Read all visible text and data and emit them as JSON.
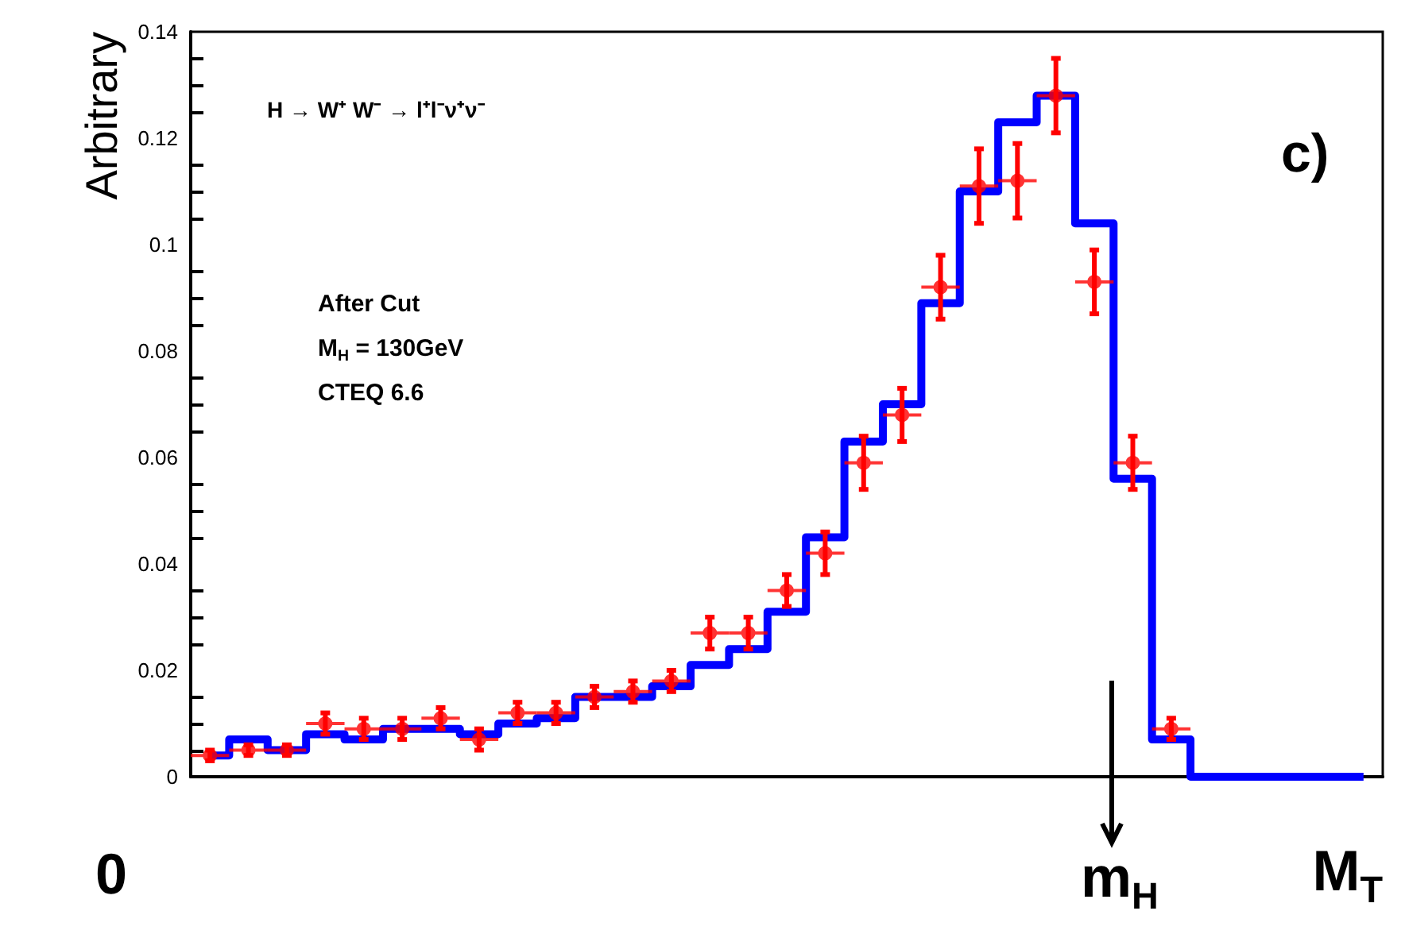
{
  "chart_data": {
    "type": "step",
    "ylabel": "Arbitrary",
    "xlabel": "M$_{T}$",
    "legend_title": "H → W⁺ W⁻ → l⁺l⁻ν⁺ν⁻",
    "categories": [
      null,
      null,
      null,
      null,
      null,
      null,
      null,
      null,
      null,
      null,
      null,
      null,
      null,
      null,
      null,
      null,
      null,
      null,
      null,
      null,
      null,
      null,
      null,
      null,
      null,
      null,
      null,
      null,
      null,
      null,
      null
    ],
    "series": [
      {
        "color": "#0000ff",
        "marker": "none",
        "values": [
          0.004,
          0.007,
          0.005,
          0.008,
          0.007,
          0.009,
          0.009,
          0.008,
          0.01,
          0.011,
          0.015,
          0.015,
          0.017,
          0.021,
          0.024,
          0.031,
          0.045,
          0.063,
          0.07,
          0.089,
          0.11,
          0.123,
          0.128,
          0.104,
          0.056,
          0.007,
          0,
          0,
          0,
          0,
          0
        ]
      },
      {
        "type": "scatter",
        "color": "#ff0000",
        "marker": "circle",
        "values": [
          0.004,
          0.005,
          0.005,
          0.01,
          0.009,
          0.009,
          0.011,
          0.007,
          0.012,
          0.012,
          0.015,
          0.016,
          0.018,
          0.027,
          0.027,
          0.035,
          0.042,
          0.059,
          0.068,
          0.092,
          0.111,
          0.112,
          0.128,
          0.093,
          0.059,
          0.009,
          null,
          null,
          null,
          null,
          null
        ],
        "errors": [
          0.001,
          0.001,
          0.001,
          0.002,
          0.002,
          0.002,
          0.002,
          0.002,
          0.002,
          0.002,
          0.002,
          0.002,
          0.002,
          0.003,
          0.003,
          0.003,
          0.004,
          0.005,
          0.005,
          0.006,
          0.007,
          0.007,
          0.007,
          0.006,
          0.005,
          0.002,
          null,
          null,
          null,
          null,
          null
        ]
      }
    ],
    "ylim": [
      0,
      0.14
    ],
    "yticks": [
      0,
      0.02,
      0.04,
      0.06,
      0.08,
      0.1,
      0.12,
      0.14
    ],
    "grid": false,
    "annotations": [
      "c)",
      "0",
      "m$_{H}$",
      "After Cut",
      "M$_{H}$ = 130GeV",
      "CTEQ 6.6"
    ]
  }
}
